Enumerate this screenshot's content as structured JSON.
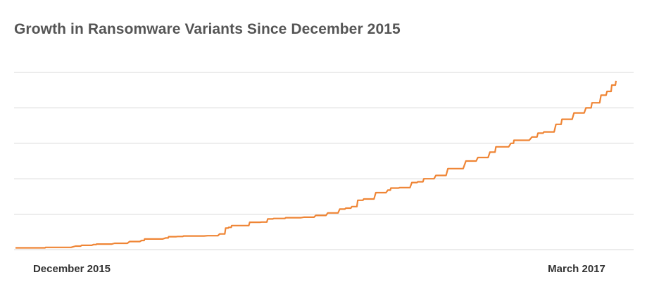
{
  "chart_data": {
    "type": "line",
    "title": "Growth in Ransomware Variants Since December 2015",
    "xlabel": "",
    "ylabel": "",
    "x_tick_labels": [
      "December 2015",
      "March 2017"
    ],
    "y_tick_labels": [],
    "grid": true,
    "y_gridlines": 6,
    "legend": "none",
    "colors": {
      "line": "#EF8535",
      "grid": "#D9D9D9",
      "title": "#555555",
      "ticks": "#333333"
    },
    "x": [
      0,
      0.045,
      0.05,
      0.1,
      0.11,
      0.13,
      0.135,
      0.165,
      0.19,
      0.21,
      0.215,
      0.25,
      0.255,
      0.27,
      0.28,
      0.32,
      0.34,
      0.35,
      0.355,
      0.36,
      0.38,
      0.39,
      0.41,
      0.42,
      0.43,
      0.44,
      0.45,
      0.48,
      0.5,
      0.52,
      0.54,
      0.55,
      0.56,
      0.57,
      0.58,
      0.6,
      0.62,
      0.625,
      0.64,
      0.66,
      0.67,
      0.68,
      0.7,
      0.72,
      0.75,
      0.77,
      0.79,
      0.8,
      0.825,
      0.83,
      0.86,
      0.87,
      0.88,
      0.9,
      0.91,
      0.93,
      0.95,
      0.96,
      0.975,
      0.985,
      0.993,
      1.0
    ],
    "values": [
      0.7,
      0.7,
      0.9,
      1.4,
      1.7,
      2.0,
      2.2,
      2.5,
      3.2,
      3.6,
      4.2,
      4.6,
      5.1,
      5.2,
      5.4,
      5.5,
      6.2,
      8.5,
      8.8,
      9.5,
      9.5,
      10.8,
      10.9,
      12.1,
      12.3,
      12.3,
      12.6,
      12.8,
      13.5,
      14.5,
      16.0,
      16.4,
      17.0,
      19.5,
      20.0,
      22.5,
      23.5,
      24.3,
      24.5,
      26.5,
      26.8,
      28.0,
      29.3,
      32.0,
      35.0,
      36.4,
      38.5,
      40.6,
      42.0,
      43.2,
      44.5,
      46.0,
      46.5,
      49.5,
      51.5,
      54.0,
      56.0,
      58.0,
      61.0,
      62.5,
      65.0,
      66.7
    ],
    "ylim": [
      0,
      70
    ],
    "xlim": [
      0,
      1
    ]
  }
}
